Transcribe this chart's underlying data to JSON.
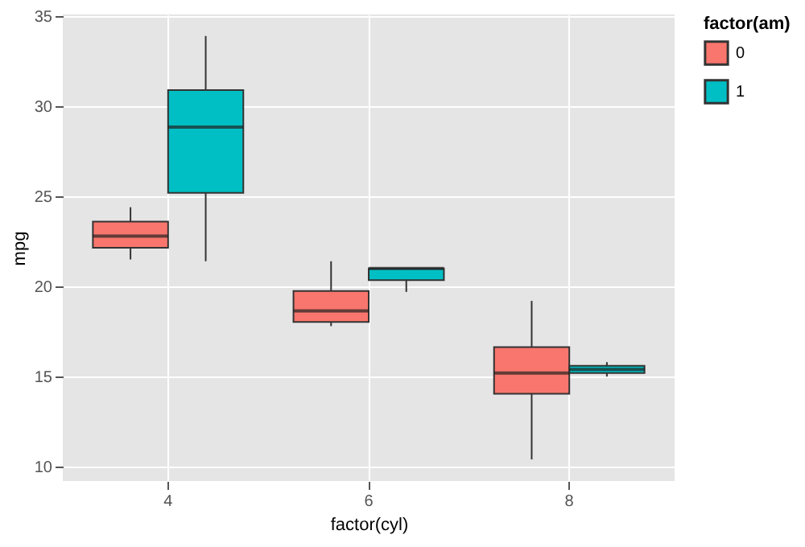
{
  "chart_data": {
    "type": "box",
    "xlabel": "factor(cyl)",
    "ylabel": "mpg",
    "legend_title": "factor(am)",
    "legend": "right",
    "grid": true,
    "categories": [
      "4",
      "6",
      "8"
    ],
    "ylim": [
      9.2,
      35.1
    ],
    "yticks": [
      10,
      15,
      20,
      25,
      30,
      35
    ],
    "series": [
      {
        "name": "0",
        "color": "#f8766d",
        "boxes": [
          {
            "low": 21.5,
            "q1": 22.15,
            "median": 22.8,
            "q3": 23.6,
            "high": 24.4
          },
          {
            "low": 17.8,
            "q1": 18.03,
            "median": 18.65,
            "q3": 19.75,
            "high": 21.4
          },
          {
            "low": 10.4,
            "q1": 14.05,
            "median": 15.2,
            "q3": 16.63,
            "high": 19.2
          }
        ]
      },
      {
        "name": "1",
        "color": "#00bfc4",
        "boxes": [
          {
            "low": 21.4,
            "q1": 25.2,
            "median": 28.85,
            "q3": 30.9,
            "high": 33.9
          },
          {
            "low": 19.7,
            "q1": 20.35,
            "median": 21.0,
            "q3": 21.0,
            "high": 21.0
          },
          {
            "low": 15.0,
            "q1": 15.2,
            "median": 15.4,
            "q3": 15.6,
            "high": 15.8
          }
        ]
      }
    ]
  }
}
